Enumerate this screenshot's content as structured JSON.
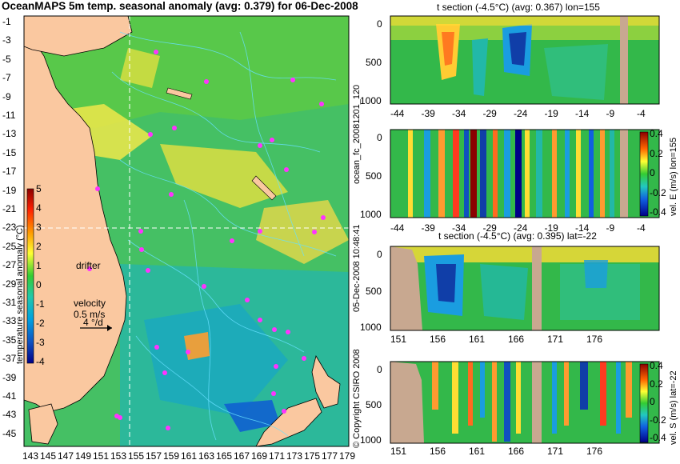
{
  "map": {
    "title": "OceanMAPS 5m temp. seasonal anomaly (avg: 0.379) for 06-Dec-2008",
    "lat_ticks": [
      "-1",
      "-3",
      "-5",
      "-7",
      "-9",
      "-11",
      "-13",
      "-15",
      "-17",
      "-19",
      "-21",
      "-23",
      "-25",
      "-27",
      "-29",
      "-31",
      "-33",
      "-35",
      "-37",
      "-39",
      "-41",
      "-43",
      "-45"
    ],
    "lon_ticks": [
      "143",
      "145",
      "147",
      "149",
      "151",
      "153",
      "155",
      "157",
      "159",
      "161",
      "163",
      "165",
      "167",
      "169",
      "171",
      "173",
      "175",
      "177",
      "179"
    ],
    "colorbar": {
      "label": "temperature seasonal anomaly (°C)",
      "ticks": [
        "5",
        "4",
        "3",
        "2",
        "1",
        "0",
        "-1",
        "-2",
        "-3",
        "-4"
      ]
    },
    "drifter_label": "drifter",
    "velocity_label": "velocity",
    "velocity_value": "0.5 m/s",
    "velocity_value2": "4 °/d",
    "section_lon_marker": 155,
    "section_lat_marker": -22,
    "colors": {
      "land": "#fac8a0",
      "drifter": "#ff33ff",
      "contour": "#66e0ff"
    }
  },
  "side_labels": {
    "forecast_id": "ocean_fc_20081201_120",
    "timestamp": "05-Dec-2008 10:48:41",
    "copyright": "© Copyright CSIRO 2008"
  },
  "panels": [
    {
      "id": "t-section-lon",
      "title": "t section (-4.5°C) (avg: 0.367) lon=155",
      "y_ticks": [
        "0",
        "500",
        "1000"
      ],
      "x_ticks": [
        "-44",
        "-39",
        "-34",
        "-29",
        "-24",
        "-19",
        "-14",
        "-9",
        "-4"
      ]
    },
    {
      "id": "v-east-lon",
      "title": "",
      "y_ticks": [
        "0",
        "500",
        "1000"
      ],
      "x_ticks": [
        "-44",
        "-39",
        "-34",
        "-29",
        "-24",
        "-19",
        "-14",
        "-9",
        "-4"
      ],
      "colorbar_label": "vel. E (m/s) lon=155",
      "colorbar_ticks": [
        "0.4",
        "0.2",
        "0",
        "-0.2",
        "-0.4"
      ]
    },
    {
      "id": "t-section-lat",
      "title": "t section (-4.5°C) (avg: 0.395) lat=-22",
      "y_ticks": [
        "0",
        "500",
        "1000"
      ],
      "x_ticks": [
        "151",
        "156",
        "161",
        "166",
        "171",
        "176"
      ]
    },
    {
      "id": "v-south-lat",
      "title": "",
      "y_ticks": [
        "0",
        "500",
        "1000"
      ],
      "x_ticks": [
        "151",
        "156",
        "161",
        "166",
        "171",
        "176"
      ],
      "colorbar_label": "vel. S (m/s) lat=-22",
      "colorbar_ticks": [
        "0.4",
        "0.2",
        "0",
        "-0.2",
        "-0.4"
      ]
    }
  ]
}
